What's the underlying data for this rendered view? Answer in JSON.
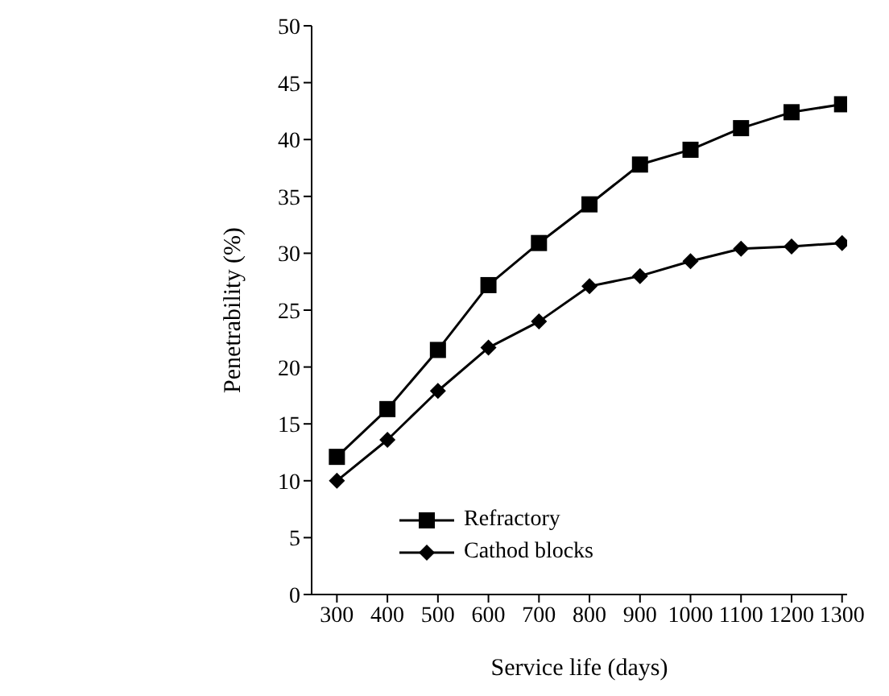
{
  "chart_data": {
    "type": "line",
    "xlabel": "Service life (days)",
    "ylabel": "Penetrability (%)",
    "x": [
      300,
      400,
      500,
      600,
      700,
      800,
      900,
      1000,
      1100,
      1200,
      1300
    ],
    "series": [
      {
        "name": "Refractory",
        "color": "#000000",
        "marker": "square",
        "values": [
          12.1,
          16.3,
          21.5,
          27.2,
          30.9,
          34.3,
          37.8,
          39.1,
          41.0,
          42.4,
          43.1
        ]
      },
      {
        "name": "Cathod blocks",
        "color": "#000000",
        "marker": "diamond",
        "values": [
          10.0,
          13.6,
          17.9,
          21.7,
          24.0,
          27.1,
          28.0,
          29.3,
          30.4,
          30.6,
          30.9
        ]
      }
    ],
    "xlim": [
      250,
      1310
    ],
    "xticks": [
      300,
      400,
      500,
      600,
      700,
      800,
      900,
      1000,
      1100,
      1200,
      1300
    ],
    "ylim": [
      0,
      50
    ],
    "yticks": [
      0,
      5,
      10,
      15,
      20,
      25,
      30,
      35,
      40,
      45,
      50
    ],
    "grid": false,
    "legend": "bottom",
    "line_style": "solid"
  }
}
